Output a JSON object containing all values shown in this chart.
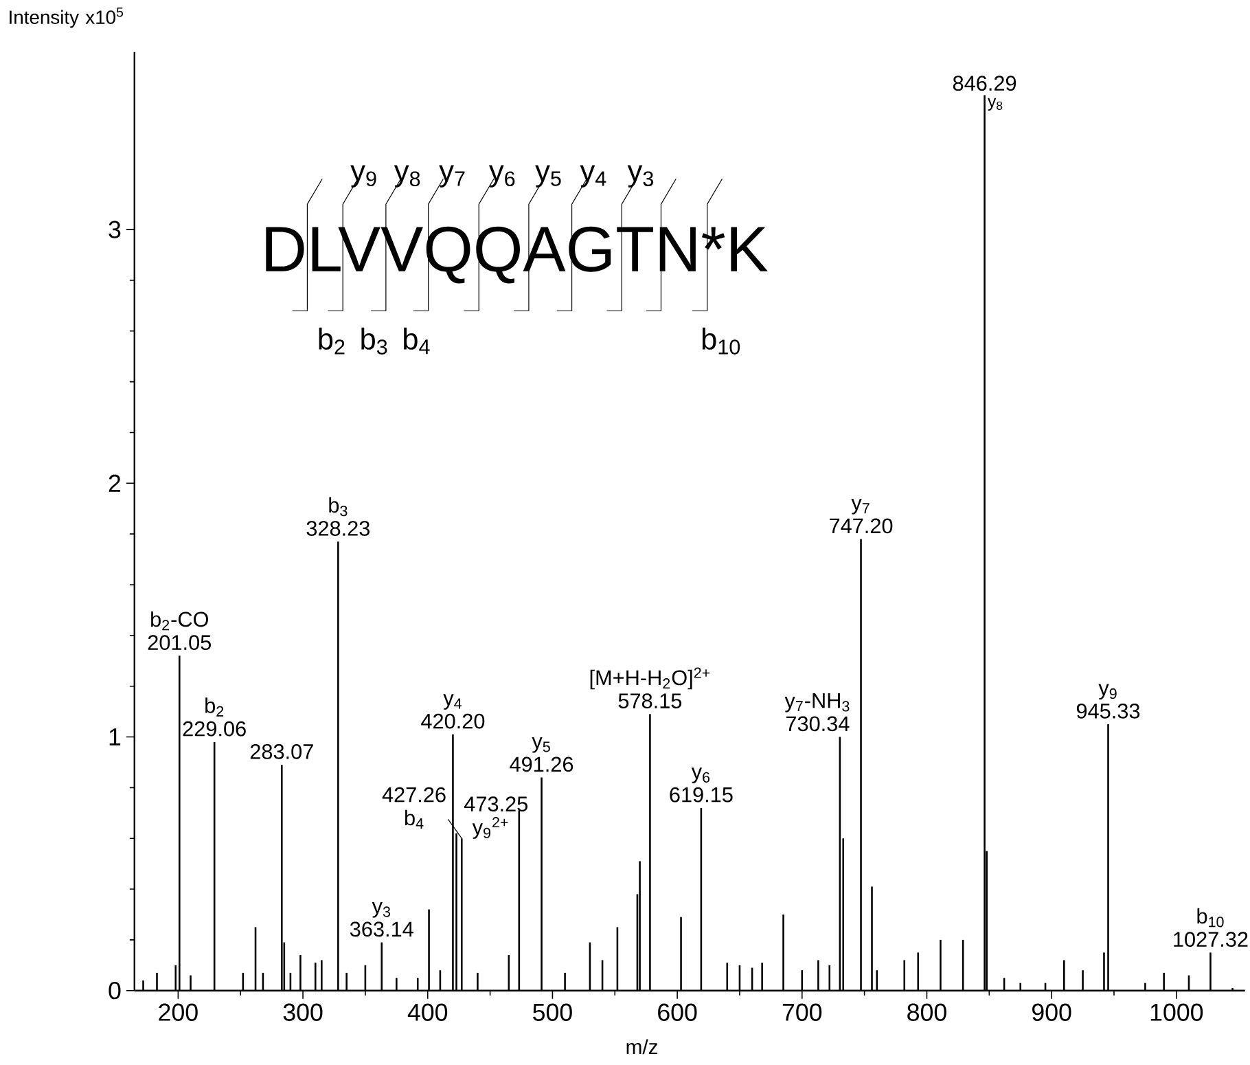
{
  "chart_data": {
    "type": "bar",
    "xlabel": "m/z",
    "ylabel": "Intensity x10$^{5}$",
    "x": [
      172,
      183,
      198,
      201.05,
      210,
      229.06,
      252,
      262,
      268,
      283.07,
      285,
      290,
      298,
      310,
      315,
      328.23,
      335,
      350,
      363.14,
      375,
      392,
      401,
      410,
      420.2,
      423,
      427.26,
      440,
      465,
      473.25,
      491.26,
      510,
      530,
      540,
      552,
      568,
      570,
      578.15,
      603,
      619.15,
      640,
      650,
      660,
      668,
      685,
      700,
      713,
      722,
      730.34,
      733,
      747.2,
      756,
      760,
      782,
      793,
      811,
      829,
      846.29,
      848,
      862,
      875,
      895,
      910,
      925,
      942,
      945.33,
      975,
      990,
      1010,
      1027.32,
      1045
    ],
    "series": [
      {
        "color": "#000000",
        "values": [
          0.04,
          0.07,
          0.1,
          1.32,
          0.06,
          0.98,
          0.07,
          0.25,
          0.07,
          0.89,
          0.19,
          0.07,
          0.14,
          0.11,
          0.12,
          1.77,
          0.07,
          0.1,
          0.19,
          0.05,
          0.05,
          0.32,
          0.08,
          1.01,
          0.62,
          0.6,
          0.07,
          0.14,
          0.71,
          0.84,
          0.07,
          0.19,
          0.12,
          0.25,
          0.38,
          0.51,
          1.09,
          0.29,
          0.72,
          0.11,
          0.1,
          0.09,
          0.11,
          0.3,
          0.08,
          0.12,
          0.1,
          1.0,
          0.6,
          1.78,
          0.41,
          0.08,
          0.12,
          0.15,
          0.2,
          0.2,
          3.53,
          0.55,
          0.05,
          0.03,
          0.03,
          0.12,
          0.08,
          0.15,
          1.05,
          0.03,
          0.07,
          0.06,
          0.15,
          0.01
        ]
      }
    ],
    "xlim": [
      165,
      1055
    ],
    "xticks": [
      200,
      300,
      400,
      500,
      600,
      700,
      800,
      900,
      1000
    ],
    "ylim": [
      0,
      3.7
    ],
    "yticks": [
      0,
      1,
      2,
      3
    ],
    "annotations": [
      {
        "text": "b$_{2}$-CO",
        "x": 201.05,
        "y": 1.32
      },
      {
        "text": "201.05",
        "x": 201.05,
        "y": 1.32
      },
      {
        "text": "b$_{2}$",
        "x": 229.06,
        "y": 0.98
      },
      {
        "text": "229.06",
        "x": 229.06,
        "y": 0.98
      },
      {
        "text": "283.07",
        "x": 283.07,
        "y": 0.89
      },
      {
        "text": "b$_{3}$",
        "x": 328.23,
        "y": 1.77
      },
      {
        "text": "328.23",
        "x": 328.23,
        "y": 1.77
      },
      {
        "text": "y$_{3}$",
        "x": 363.14,
        "y": 0.19
      },
      {
        "text": "363.14",
        "x": 363.14,
        "y": 0.19
      },
      {
        "text": "y$_{4}$",
        "x": 420.2,
        "y": 1.01
      },
      {
        "text": "420.20",
        "x": 420.2,
        "y": 1.01
      },
      {
        "text": "427.26",
        "x": 427.26,
        "y": 0.6
      },
      {
        "text": "b$_{4}$",
        "x": 427.26,
        "y": 0.6
      },
      {
        "text": "473.25",
        "x": 473.25,
        "y": 0.71
      },
      {
        "text": "y$_{9}$$^{2+}$",
        "x": 473.25,
        "y": 0.71
      },
      {
        "text": "y$_{5}$",
        "x": 491.26,
        "y": 0.84
      },
      {
        "text": "491.26",
        "x": 491.26,
        "y": 0.84
      },
      {
        "text": "[M+H-H$_{2}$O]$^{2+}$",
        "x": 578.15,
        "y": 1.09
      },
      {
        "text": "578.15",
        "x": 578.15,
        "y": 1.09
      },
      {
        "text": "y$_{6}$",
        "x": 619.15,
        "y": 0.72
      },
      {
        "text": "619.15",
        "x": 619.15,
        "y": 0.72
      },
      {
        "text": "y$_{7}$-NH$_{3}$",
        "x": 730.34,
        "y": 1.0
      },
      {
        "text": "730.34",
        "x": 730.34,
        "y": 1.0
      },
      {
        "text": "y$_{7}$",
        "x": 747.2,
        "y": 1.78
      },
      {
        "text": "747.20",
        "x": 747.2,
        "y": 1.78
      },
      {
        "text": "846.29",
        "x": 846.29,
        "y": 3.53
      },
      {
        "text": "y$_{8}$",
        "x": 846.29,
        "y": 3.53
      },
      {
        "text": "y$_{9}$",
        "x": 945.33,
        "y": 1.05
      },
      {
        "text": "945.33",
        "x": 945.33,
        "y": 1.05
      },
      {
        "text": "b$_{10}$",
        "x": 1027.32,
        "y": 0.15
      },
      {
        "text": "1027.32",
        "x": 1027.32,
        "y": 0.15
      },
      "DLVVQQAGTN*K",
      "y$_{9}$",
      "y$_{8}$",
      "y$_{7}$",
      "y$_{6}$",
      "y$_{5}$",
      "y$_{4}$",
      "y$_{3}$",
      "b$_{2}$",
      "b$_{3}$",
      "b$_{4}$",
      "b$_{10}$"
    ]
  }
}
